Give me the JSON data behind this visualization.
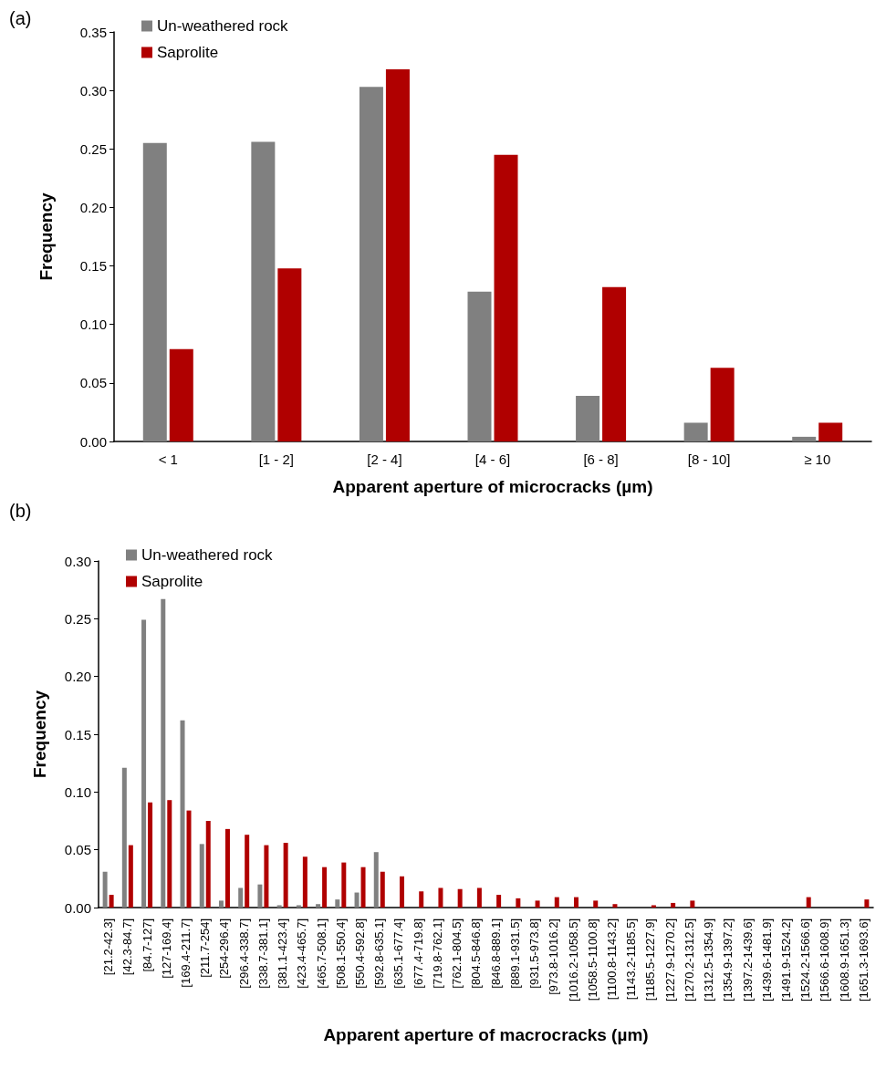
{
  "chart_data": [
    {
      "type": "bar",
      "xlabel": "Apparent aperture of microcracks (µm)",
      "ylabel": "Frequency",
      "annotations": [
        "(a)"
      ],
      "legend": "top left",
      "grid": false,
      "categories": [
        "< 1",
        "[1 - 2]",
        "[2 - 4]",
        "[4 - 6]",
        "[6 - 8]",
        "[8 - 10]",
        "≥ 10"
      ],
      "ylim": [
        0,
        0.35
      ],
      "yticks": [
        {
          "value": 0,
          "label": "0.00"
        },
        {
          "value": 0.05,
          "label": "0.05"
        },
        {
          "value": 0.1,
          "label": "0.10"
        },
        {
          "value": 0.15,
          "label": "0.15"
        },
        {
          "value": 0.2,
          "label": "0.20"
        },
        {
          "value": 0.25,
          "label": "0.25"
        },
        {
          "value": 0.3,
          "label": "0.30"
        },
        {
          "value": 0.35,
          "label": "0.35"
        }
      ],
      "series": [
        {
          "name": "Un-weathered rock",
          "color": "#808080",
          "values": [
            0.255,
            0.256,
            0.303,
            0.128,
            0.039,
            0.016,
            0.004
          ]
        },
        {
          "name": "Saprolite",
          "color": "#b00000",
          "values": [
            0.079,
            0.148,
            0.318,
            0.245,
            0.132,
            0.063,
            0.016
          ]
        }
      ]
    },
    {
      "type": "bar",
      "xlabel": "Apparent aperture of macrocracks (µm)",
      "ylabel": "Frequency",
      "annotations": [
        "(b)"
      ],
      "legend": "top left",
      "grid": false,
      "categories": [
        "[21.2-42.3]",
        "[42.3-84.7]",
        "[84.7-127]",
        "[127-169.4]",
        "[169.4-211.7]",
        "[211.7-254]",
        "[254-296.4]",
        "[296.4-338.7]",
        "[338.7-381.1]",
        "[381.1-423.4]",
        "[423.4-465.7]",
        "[465.7-508.1]",
        "[508.1-550.4]",
        "[550.4-592.8]",
        "[592.8-635.1]",
        "[635.1-677.4]",
        "[677.4-719.8]",
        "[719.8-762.1]",
        "[762.1-804.5]",
        "[804.5-846.8]",
        "[846.8-889.1]",
        "[889.1-931.5]",
        "[931.5-973.8]",
        "[973.8-1016.2]",
        "[1016.2-1058.5]",
        "[1058.5-1100.8]",
        "[1100.8-1143.2]",
        "[1143.2-1185.5]",
        "[1185.5-1227.9]",
        "[1227.9-1270.2]",
        "[1270.2-1312.5]",
        "[1312.5-1354.9]",
        "[1354.9-1397.2]",
        "[1397.2-1439.6]",
        "[1439.6-1481.9]",
        "[1491.9-1524.2]",
        "[1524.2-1566.6]",
        "[1566.6-1608.9]",
        "[1608.9-1651.3]",
        "[1651.3-1693.6]"
      ],
      "ylim": [
        0,
        0.3
      ],
      "yticks": [
        {
          "value": 0,
          "label": "0.00"
        },
        {
          "value": 0.05,
          "label": "0.05"
        },
        {
          "value": 0.1,
          "label": "0.10"
        },
        {
          "value": 0.15,
          "label": "0.15"
        },
        {
          "value": 0.2,
          "label": "0.20"
        },
        {
          "value": 0.25,
          "label": "0.25"
        },
        {
          "value": 0.3,
          "label": "0.30"
        }
      ],
      "series": [
        {
          "name": "Un-weathered rock",
          "color": "#808080",
          "values": [
            0.031,
            0.121,
            0.249,
            0.267,
            0.162,
            0.055,
            0.006,
            0.017,
            0.02,
            0.002,
            0.002,
            0.003,
            0.007,
            0.013,
            0.048,
            0,
            0,
            0,
            0,
            0,
            0,
            0,
            0,
            0,
            0,
            0,
            0,
            0,
            0,
            0,
            0,
            0,
            0,
            0,
            0,
            0,
            0,
            0,
            0,
            0
          ]
        },
        {
          "name": "Saprolite",
          "color": "#b00000",
          "values": [
            0.011,
            0.054,
            0.091,
            0.093,
            0.084,
            0.075,
            0.068,
            0.063,
            0.054,
            0.056,
            0.044,
            0.035,
            0.039,
            0.035,
            0.031,
            0.027,
            0.014,
            0.017,
            0.016,
            0.017,
            0.011,
            0.008,
            0.006,
            0.009,
            0.009,
            0.006,
            0.003,
            0,
            0.002,
            0.004,
            0.006,
            0,
            0,
            0,
            0,
            0,
            0.009,
            0,
            0,
            0.007
          ]
        }
      ]
    }
  ]
}
